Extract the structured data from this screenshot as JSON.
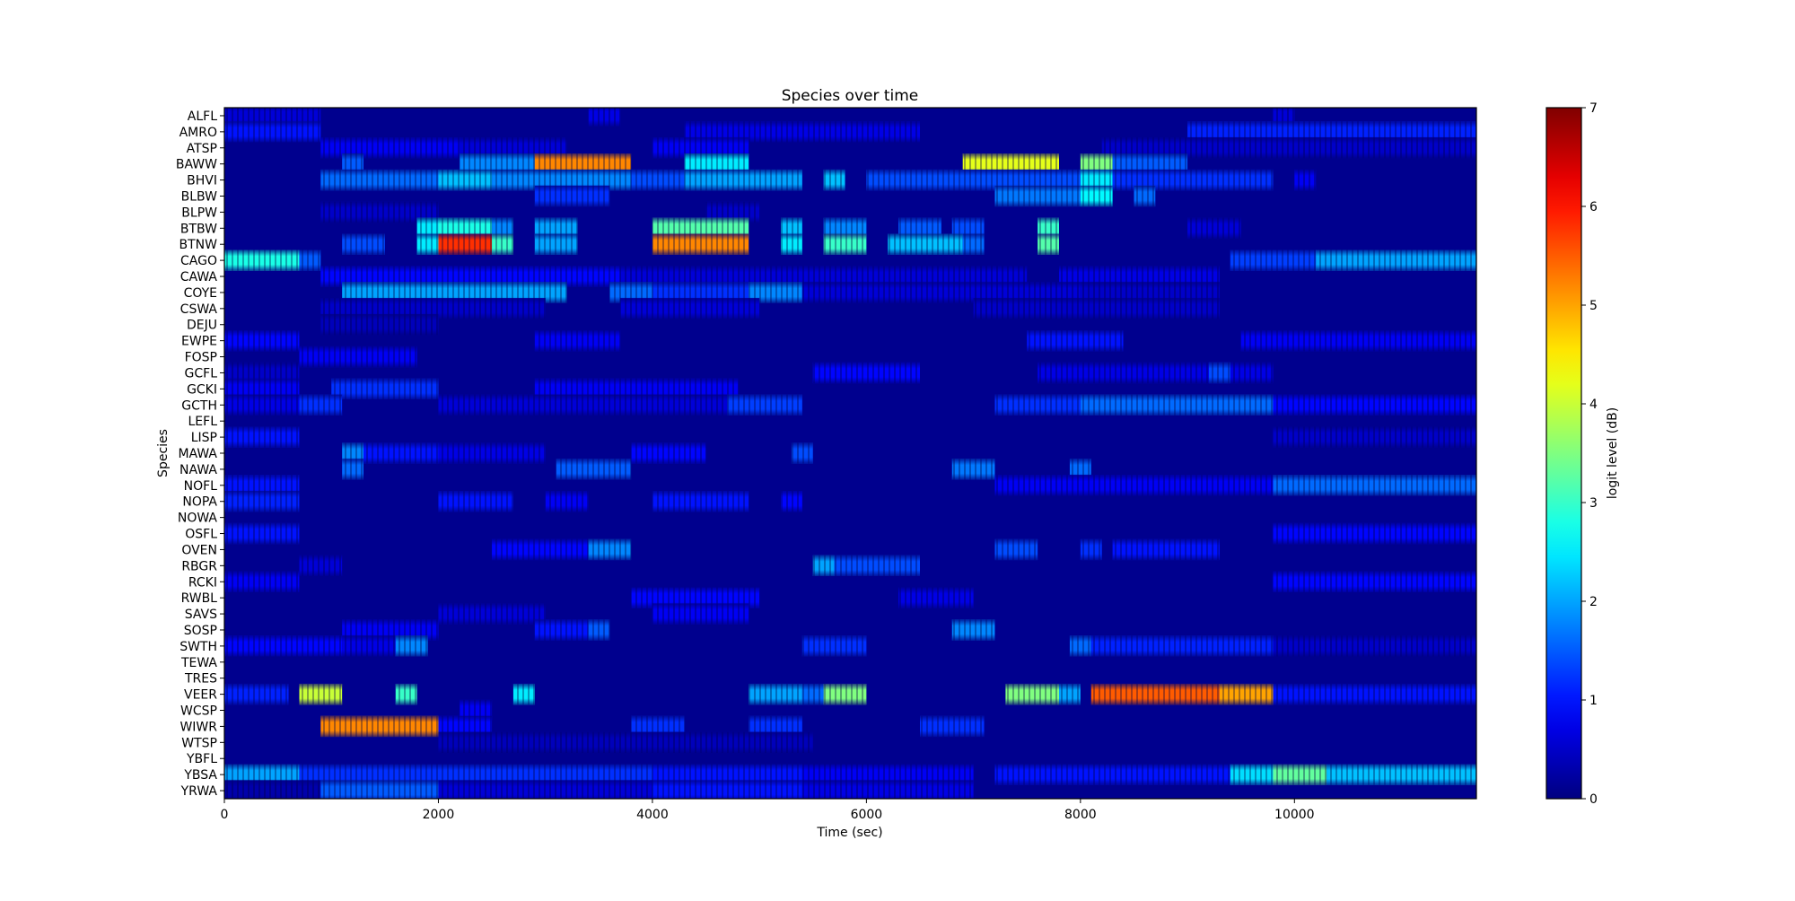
{
  "chart_data": {
    "type": "heatmap",
    "title": "Species over time",
    "xlabel": "Time (sec)",
    "ylabel": "Species",
    "colorbar_label": "logit level (dB)",
    "colormap": "jet",
    "xlim": [
      0,
      11700
    ],
    "clim": [
      0,
      7
    ],
    "x_ticks": [
      0,
      2000,
      4000,
      6000,
      8000,
      10000
    ],
    "colorbar_ticks": [
      0,
      1,
      2,
      3,
      4,
      5,
      6,
      7
    ],
    "background_level": 0.1,
    "species": [
      "ALFL",
      "AMRO",
      "ATSP",
      "BAWW",
      "BHVI",
      "BLBW",
      "BLPW",
      "BTBW",
      "BTNW",
      "CAGO",
      "CAWA",
      "COYE",
      "CSWA",
      "DEJU",
      "EWPE",
      "FOSP",
      "GCFL",
      "GCKI",
      "GCTH",
      "LEFL",
      "LISP",
      "MAWA",
      "NAWA",
      "NOFL",
      "NOPA",
      "NOWA",
      "OSFL",
      "OVEN",
      "RBGR",
      "RCKI",
      "RWBL",
      "SAVS",
      "SOSP",
      "SWTH",
      "TEWA",
      "TRES",
      "VEER",
      "WCSP",
      "WIWR",
      "WTSP",
      "YBFL",
      "YBSA",
      "YRWA"
    ],
    "segments": {
      "ALFL": [
        [
          0,
          900,
          0.6
        ],
        [
          3400,
          3700,
          0.7
        ],
        [
          9800,
          10000,
          0.6
        ]
      ],
      "AMRO": [
        [
          0,
          900,
          1.0
        ],
        [
          4300,
          6500,
          0.7
        ],
        [
          9000,
          11700,
          1.1
        ]
      ],
      "ATSP": [
        [
          900,
          2200,
          0.8
        ],
        [
          2200,
          3200,
          0.6
        ],
        [
          4000,
          4900,
          0.8
        ],
        [
          8200,
          11700,
          0.5
        ]
      ],
      "BAWW": [
        [
          1100,
          1300,
          1.5
        ],
        [
          2200,
          2900,
          1.8
        ],
        [
          2900,
          3800,
          5.2
        ],
        [
          4300,
          4900,
          2.5
        ],
        [
          6900,
          7800,
          4.2
        ],
        [
          8000,
          8300,
          3.5
        ],
        [
          8300,
          9000,
          1.5
        ]
      ],
      "BHVI": [
        [
          900,
          2000,
          1.6
        ],
        [
          2000,
          2500,
          2.2
        ],
        [
          2500,
          3800,
          1.8
        ],
        [
          3800,
          4300,
          1.4
        ],
        [
          4300,
          5400,
          2.0
        ],
        [
          5600,
          5800,
          2.2
        ],
        [
          6000,
          8000,
          1.4
        ],
        [
          8000,
          8300,
          2.5
        ],
        [
          8300,
          9800,
          1.2
        ],
        [
          10000,
          10200,
          0.8
        ]
      ],
      "BLBW": [
        [
          2900,
          3600,
          1.2
        ],
        [
          7200,
          8000,
          1.7
        ],
        [
          8000,
          8300,
          2.6
        ],
        [
          8500,
          8700,
          1.6
        ]
      ],
      "BLPW": [
        [
          900,
          2000,
          0.5
        ],
        [
          4500,
          5000,
          0.5
        ]
      ],
      "BTBW": [
        [
          1800,
          2000,
          2.5
        ],
        [
          2000,
          2500,
          2.8
        ],
        [
          2500,
          2700,
          1.8
        ],
        [
          2900,
          3300,
          2.0
        ],
        [
          4000,
          4900,
          3.2
        ],
        [
          5200,
          5400,
          2.2
        ],
        [
          5600,
          6000,
          1.8
        ],
        [
          6300,
          6700,
          1.5
        ],
        [
          6800,
          7100,
          1.4
        ],
        [
          7600,
          7800,
          3.0
        ],
        [
          9000,
          9500,
          0.6
        ]
      ],
      "BTNW": [
        [
          1100,
          1500,
          1.4
        ],
        [
          1800,
          2000,
          2.5
        ],
        [
          2000,
          2500,
          5.8
        ],
        [
          2500,
          2700,
          3.0
        ],
        [
          2900,
          3300,
          2.0
        ],
        [
          4000,
          4900,
          5.2
        ],
        [
          5200,
          5400,
          2.5
        ],
        [
          5600,
          6000,
          3.0
        ],
        [
          6200,
          6900,
          2.2
        ],
        [
          6900,
          7100,
          1.6
        ],
        [
          7600,
          7800,
          3.2
        ]
      ],
      "CAGO": [
        [
          0,
          700,
          2.8
        ],
        [
          700,
          900,
          1.5
        ],
        [
          9400,
          10200,
          1.3
        ],
        [
          10200,
          11700,
          2.0
        ]
      ],
      "CAWA": [
        [
          900,
          3700,
          0.9
        ],
        [
          3700,
          7500,
          0.6
        ],
        [
          7800,
          9300,
          0.7
        ]
      ],
      "COYE": [
        [
          1100,
          3200,
          2.0
        ],
        [
          3600,
          4000,
          1.6
        ],
        [
          4000,
          4900,
          1.2
        ],
        [
          4900,
          5400,
          1.8
        ],
        [
          5400,
          8000,
          0.6
        ],
        [
          8000,
          9300,
          0.5
        ]
      ],
      "CSWA": [
        [
          900,
          3000,
          0.5
        ],
        [
          3700,
          5000,
          0.6
        ],
        [
          7000,
          9300,
          0.5
        ]
      ],
      "DEJU": [
        [
          900,
          2000,
          0.4
        ]
      ],
      "EWPE": [
        [
          0,
          700,
          0.9
        ],
        [
          2900,
          3700,
          0.8
        ],
        [
          7500,
          8400,
          1.0
        ],
        [
          9500,
          11700,
          0.8
        ]
      ],
      "FOSP": [
        [
          700,
          1800,
          0.8
        ]
      ],
      "GCFL": [
        [
          0,
          700,
          0.5
        ],
        [
          5500,
          6500,
          0.9
        ],
        [
          7600,
          9800,
          0.7
        ],
        [
          9200,
          9400,
          1.4
        ]
      ],
      "GCKI": [
        [
          0,
          700,
          0.8
        ],
        [
          1000,
          2000,
          1.2
        ],
        [
          2900,
          4800,
          0.8
        ]
      ],
      "GCTH": [
        [
          0,
          700,
          0.7
        ],
        [
          700,
          1100,
          1.2
        ],
        [
          2000,
          4700,
          0.6
        ],
        [
          4700,
          5400,
          1.3
        ],
        [
          7200,
          8000,
          1.2
        ],
        [
          8000,
          9800,
          1.6
        ],
        [
          9800,
          11700,
          0.9
        ]
      ],
      "LEFL": [],
      "LISP": [
        [
          0,
          700,
          1.0
        ],
        [
          9800,
          11700,
          0.5
        ]
      ],
      "MAWA": [
        [
          1100,
          1300,
          1.8
        ],
        [
          1300,
          2000,
          1.0
        ],
        [
          2000,
          3000,
          0.7
        ],
        [
          3800,
          4500,
          0.9
        ],
        [
          5300,
          5500,
          1.4
        ]
      ],
      "NAWA": [
        [
          1100,
          1300,
          1.6
        ],
        [
          3100,
          3800,
          1.5
        ],
        [
          6800,
          7200,
          1.7
        ],
        [
          7900,
          8100,
          1.6
        ]
      ],
      "NOFL": [
        [
          0,
          700,
          1.0
        ],
        [
          7200,
          9800,
          0.8
        ],
        [
          9800,
          11700,
          1.6
        ]
      ],
      "NOPA": [
        [
          0,
          700,
          1.1
        ],
        [
          2000,
          2700,
          1.0
        ],
        [
          3000,
          3400,
          0.8
        ],
        [
          4000,
          4900,
          1.0
        ],
        [
          5200,
          5400,
          0.9
        ]
      ],
      "NOWA": [],
      "OSFL": [
        [
          0,
          700,
          1.0
        ],
        [
          9800,
          11700,
          0.9
        ]
      ],
      "OVEN": [
        [
          2500,
          3400,
          0.9
        ],
        [
          3400,
          3800,
          1.8
        ],
        [
          7200,
          7600,
          1.4
        ],
        [
          8000,
          8200,
          1.2
        ],
        [
          8300,
          9300,
          1.0
        ]
      ],
      "RBGR": [
        [
          700,
          1100,
          0.6
        ],
        [
          5500,
          5700,
          2.0
        ],
        [
          5700,
          6500,
          1.4
        ]
      ],
      "RCKI": [
        [
          0,
          700,
          0.8
        ],
        [
          9800,
          11700,
          0.9
        ]
      ],
      "RWBL": [
        [
          3800,
          5000,
          0.9
        ],
        [
          6300,
          7000,
          0.7
        ]
      ],
      "SAVS": [
        [
          2000,
          3000,
          0.6
        ],
        [
          4000,
          4900,
          0.8
        ]
      ],
      "SOSP": [
        [
          1100,
          2000,
          0.8
        ],
        [
          2900,
          3400,
          1.0
        ],
        [
          3400,
          3600,
          1.5
        ],
        [
          6800,
          7200,
          1.8
        ]
      ],
      "SWTH": [
        [
          0,
          1100,
          0.9
        ],
        [
          1100,
          1600,
          0.7
        ],
        [
          1600,
          1900,
          1.8
        ],
        [
          5400,
          6000,
          1.2
        ],
        [
          7900,
          8100,
          1.6
        ],
        [
          8100,
          9800,
          1.1
        ],
        [
          9800,
          11700,
          0.5
        ]
      ],
      "TEWA": [],
      "TRES": [],
      "VEER": [
        [
          0,
          600,
          1.1
        ],
        [
          700,
          1100,
          4.0
        ],
        [
          1600,
          1800,
          3.0
        ],
        [
          2700,
          2900,
          2.5
        ],
        [
          4900,
          5400,
          2.0
        ],
        [
          5400,
          5600,
          1.6
        ],
        [
          5600,
          6000,
          3.5
        ],
        [
          7300,
          7800,
          3.5
        ],
        [
          7800,
          8000,
          2.0
        ],
        [
          8100,
          9300,
          5.5
        ],
        [
          9300,
          9800,
          5.0
        ],
        [
          9800,
          11700,
          1.0
        ]
      ],
      "WCSP": [
        [
          2200,
          2500,
          0.8
        ]
      ],
      "WIWR": [
        [
          900,
          2000,
          5.2
        ],
        [
          2000,
          2500,
          0.9
        ],
        [
          3800,
          4300,
          1.2
        ],
        [
          4900,
          5400,
          1.2
        ],
        [
          6500,
          7100,
          1.2
        ]
      ],
      "WTSP": [
        [
          2000,
          5500,
          0.4
        ]
      ],
      "YBFL": [],
      "YBSA": [
        [
          0,
          700,
          2.0
        ],
        [
          700,
          4000,
          1.2
        ],
        [
          4000,
          5400,
          1.0
        ],
        [
          5400,
          7000,
          0.8
        ],
        [
          7200,
          9400,
          1.0
        ],
        [
          9400,
          9800,
          2.4
        ],
        [
          9800,
          10300,
          3.3
        ],
        [
          10300,
          11700,
          2.2
        ]
      ],
      "YRWA": [
        [
          0,
          900,
          0.3
        ],
        [
          900,
          2000,
          1.5
        ],
        [
          2000,
          4000,
          0.6
        ],
        [
          4000,
          5400,
          1.0
        ],
        [
          5400,
          7000,
          0.7
        ]
      ]
    }
  }
}
